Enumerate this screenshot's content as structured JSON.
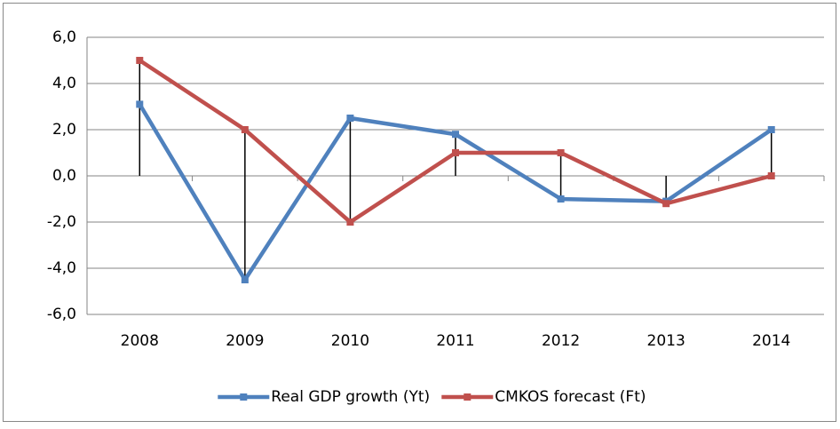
{
  "chart_data": {
    "type": "line",
    "categories": [
      "2008",
      "2009",
      "2010",
      "2011",
      "2012",
      "2013",
      "2014"
    ],
    "series": [
      {
        "name": "Real GDP growth (Yt)",
        "color": "#4f81bd",
        "values": [
          3.1,
          -4.5,
          2.5,
          1.8,
          -1.0,
          -1.1,
          2.0
        ]
      },
      {
        "name": "CMKOS forecast (Ft)",
        "color": "#c0504d",
        "values": [
          5.0,
          2.0,
          -2.0,
          1.0,
          1.0,
          -1.2,
          0.0
        ]
      }
    ],
    "ylim": [
      -6,
      6
    ],
    "yticks": [
      {
        "value": -6,
        "label": "-6,0"
      },
      {
        "value": -4,
        "label": "-4,0"
      },
      {
        "value": -2,
        "label": "-2,0"
      },
      {
        "value": 0,
        "label": "0,0"
      },
      {
        "value": 2,
        "label": "2,0"
      },
      {
        "value": 4,
        "label": "4,0"
      },
      {
        "value": 6,
        "label": "6,0"
      }
    ],
    "grid": true,
    "legend": "bottom",
    "high_low_lines": true
  }
}
